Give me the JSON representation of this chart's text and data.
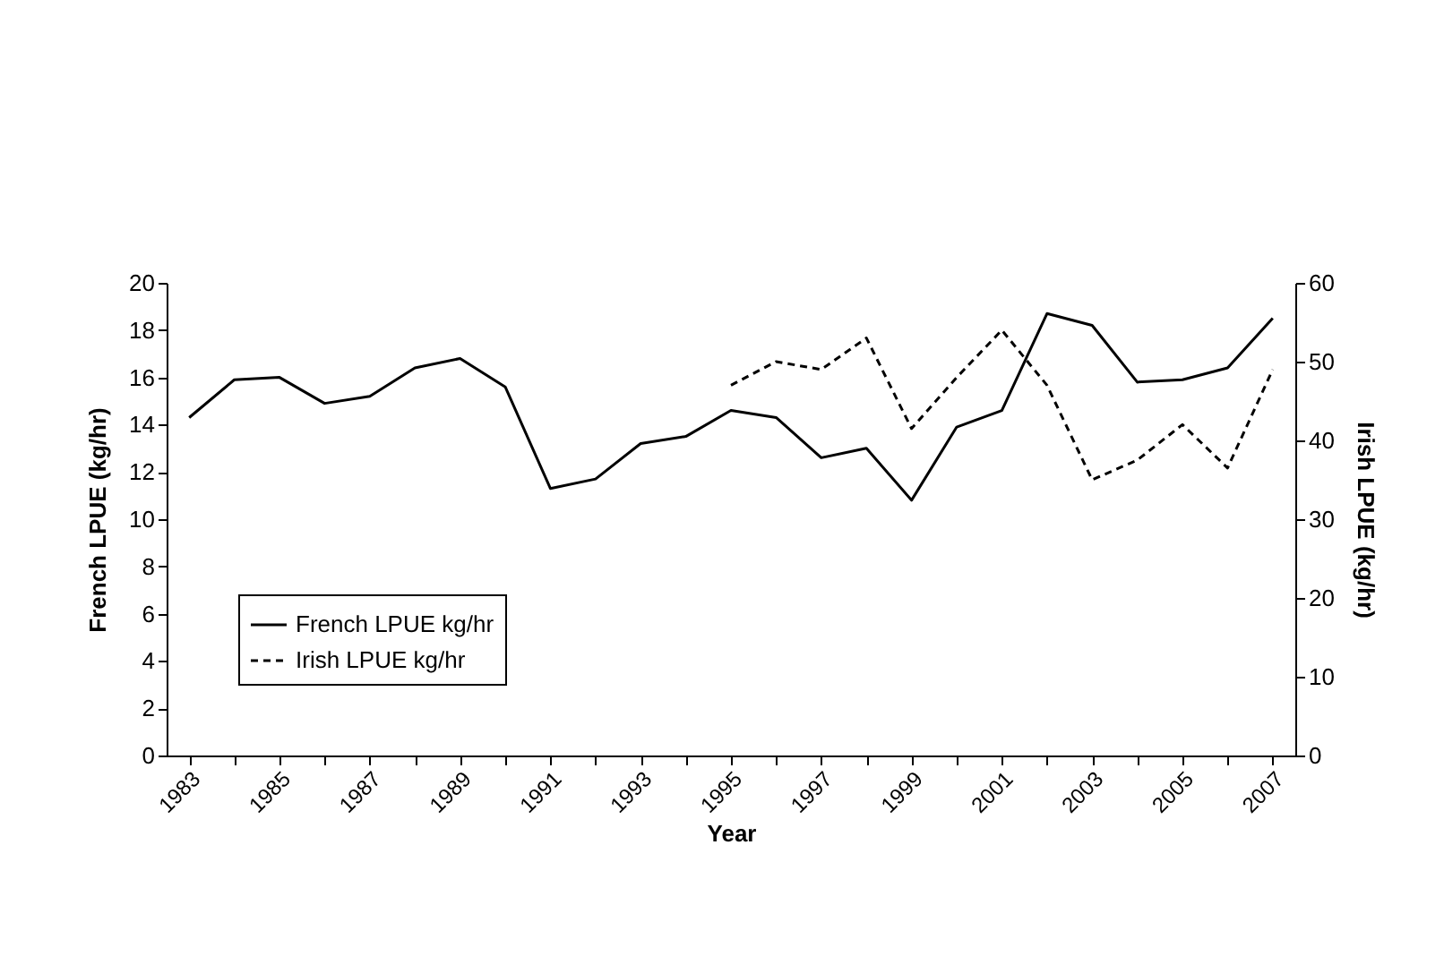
{
  "chart_data": {
    "type": "line",
    "xlabel": "Year",
    "ylabel": "French LPUE (kg/hr)",
    "y2label": "Irish LPUE (kg/hr)",
    "categories": [
      "1983",
      null,
      "1985",
      null,
      "1987",
      null,
      "1989",
      null,
      "1991",
      null,
      "1993",
      null,
      "1995",
      null,
      "1997",
      null,
      "1999",
      null,
      "2001",
      null,
      "2003",
      null,
      "2005",
      null,
      "2007"
    ],
    "series": [
      {
        "name": "French LPUE kg/hr",
        "color": "#000000",
        "line_style": "solid",
        "values": [
          14.3,
          15.9,
          16.0,
          14.9,
          15.2,
          16.4,
          16.8,
          15.6,
          11.3,
          11.7,
          13.2,
          13.5,
          14.6,
          14.3,
          12.6,
          13.0,
          10.8,
          13.9,
          14.6,
          18.7,
          18.2,
          15.8,
          15.9,
          16.4,
          18.5
        ]
      },
      {
        "name": "Irish LPUE kg/hr",
        "color": "#000000",
        "line_style": "dashed",
        "axis": "y2",
        "values": [
          null,
          null,
          null,
          null,
          null,
          null,
          null,
          null,
          null,
          null,
          null,
          null,
          47,
          50,
          49,
          53,
          41.5,
          48,
          54,
          47,
          35,
          37.5,
          42,
          36.5,
          49
        ]
      }
    ],
    "ylim": [
      0,
      20
    ],
    "yticks": [
      0,
      2,
      4,
      6,
      8,
      10,
      12,
      14,
      16,
      18,
      20
    ],
    "y2lim": [
      0,
      60
    ],
    "y2ticks": [
      0,
      10,
      20,
      30,
      40,
      50,
      60
    ],
    "grid": false,
    "legend": "bottom left"
  }
}
